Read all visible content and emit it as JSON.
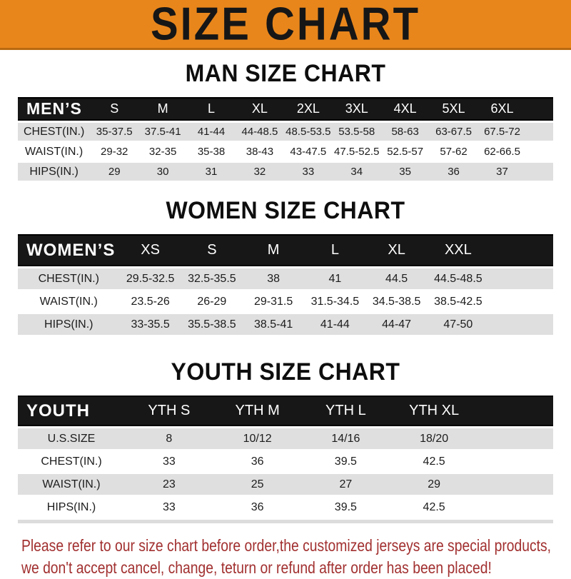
{
  "banner": {
    "title": "SIZE CHART",
    "bg_color": "#E8861C",
    "text_color": "#161616"
  },
  "colors": {
    "header_bar": "#171717",
    "row_stripe": "#DFDFDF",
    "footer_text": "#A23030"
  },
  "sections": [
    {
      "heading": "MAN SIZE CHART",
      "table": {
        "header_label": "MEN’S",
        "columns": [
          "S",
          "M",
          "L",
          "XL",
          "2XL",
          "3XL",
          "4XL",
          "5XL",
          "6XL"
        ],
        "rows": [
          {
            "label": "CHEST(IN.)",
            "values": [
              "35-37.5",
              "37.5-41",
              "41-44",
              "44-48.5",
              "48.5-53.5",
              "53.5-58",
              "58-63",
              "63-67.5",
              "67.5-72"
            ]
          },
          {
            "label": "WAIST(IN.)",
            "values": [
              "29-32",
              "32-35",
              "35-38",
              "38-43",
              "43-47.5",
              "47.5-52.5",
              "52.5-57",
              "57-62",
              "62-66.5"
            ]
          },
          {
            "label": "HIPS(IN.)",
            "values": [
              "29",
              "30",
              "31",
              "32",
              "33",
              "34",
              "35",
              "36",
              "37"
            ]
          }
        ]
      }
    },
    {
      "heading": "WOMEN SIZE CHART",
      "table": {
        "header_label": "WOMEN’S",
        "columns": [
          "XS",
          "S",
          "M",
          "L",
          "XL",
          "XXL"
        ],
        "rows": [
          {
            "label": "CHEST(IN.)",
            "values": [
              "29.5-32.5",
              "32.5-35.5",
              "38",
              "41",
              "44.5",
              "44.5-48.5"
            ]
          },
          {
            "label": "WAIST(IN.)",
            "values": [
              "23.5-26",
              "26-29",
              "29-31.5",
              "31.5-34.5",
              "34.5-38.5",
              "38.5-42.5"
            ]
          },
          {
            "label": "HIPS(IN.)",
            "values": [
              "33-35.5",
              "35.5-38.5",
              "38.5-41",
              "41-44",
              "44-47",
              "47-50"
            ]
          }
        ]
      }
    },
    {
      "heading": "YOUTH SIZE CHART",
      "table": {
        "header_label": "YOUTH",
        "columns": [
          "YTH S",
          "YTH M",
          "YTH L",
          "YTH XL"
        ],
        "rows": [
          {
            "label": "U.S.SIZE",
            "values": [
              "8",
              "10/12",
              "14/16",
              "18/20"
            ]
          },
          {
            "label": "CHEST(IN.)",
            "values": [
              "33",
              "36",
              "39.5",
              "42.5"
            ]
          },
          {
            "label": "WAIST(IN.)",
            "values": [
              "23",
              "25",
              "27",
              "29"
            ]
          },
          {
            "label": "HIPS(IN.)",
            "values": [
              "33",
              "36",
              "39.5",
              "42.5"
            ]
          }
        ]
      }
    }
  ],
  "footer": {
    "line1": "Please refer to our size chart before order,the customized jerseys are special products,",
    "line2": "we don't accept cancel, change, teturn or refund after order has been placed!"
  }
}
